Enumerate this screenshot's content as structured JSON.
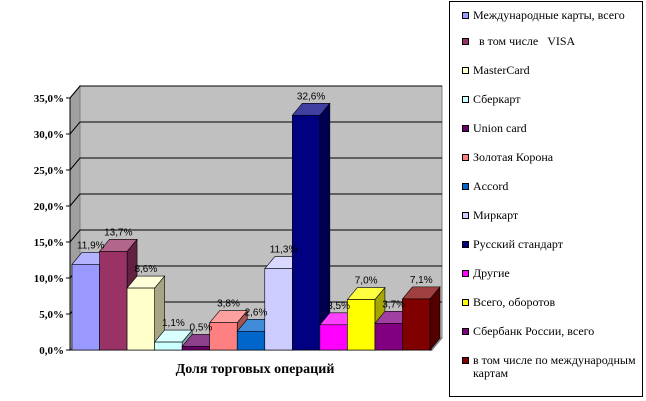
{
  "chart_data": {
    "type": "bar",
    "style": "3d-clustered",
    "xlabel": "Доля торговых операций",
    "ylim": [
      0,
      35
    ],
    "yticks": [
      "0,0%",
      "5,0%",
      "10,0%",
      "15,0%",
      "20,0%",
      "25,0%",
      "30,0%",
      "35,0%"
    ],
    "grid": true,
    "legend_position": "right",
    "series": [
      {
        "name": "Международные карты, всего",
        "value": 11.9,
        "label": "11,9%",
        "color": "#9999ff"
      },
      {
        "name": "  в том числе   VISA",
        "value": 13.7,
        "label": "13,7%",
        "color": "#993366"
      },
      {
        "name": "MasterCard",
        "value": 8.6,
        "label": "8,6%",
        "color": "#ffffcc"
      },
      {
        "name": "Сберкарт",
        "value": 1.1,
        "label": "1,1%",
        "color": "#ccffff"
      },
      {
        "name": "Union card",
        "value": 0.5,
        "label": "0,5%",
        "color": "#660066"
      },
      {
        "name": "Золотая Корона",
        "value": 3.8,
        "label": "3,8%",
        "color": "#ff8080"
      },
      {
        "name": "Accord",
        "value": 2.6,
        "label": "2,6%",
        "color": "#0066cc"
      },
      {
        "name": "Миркарт",
        "value": 11.3,
        "label": "11,3%",
        "color": "#ccccff"
      },
      {
        "name": "Русский стандарт",
        "value": 32.6,
        "label": "32,6%",
        "color": "#000080"
      },
      {
        "name": "Другие",
        "value": 3.5,
        "label": "3,5%",
        "color": "#ff00ff"
      },
      {
        "name": "Всего, оборотов",
        "value": 7.0,
        "label": "7,0%",
        "color": "#ffff00"
      },
      {
        "name": "Сбербанк России, всего",
        "value": 3.7,
        "label": "3,7%",
        "color": "#800080"
      },
      {
        "name": "в том числе по международным картам",
        "value": 7.1,
        "label": "7,1%",
        "color": "#800000"
      }
    ]
  }
}
